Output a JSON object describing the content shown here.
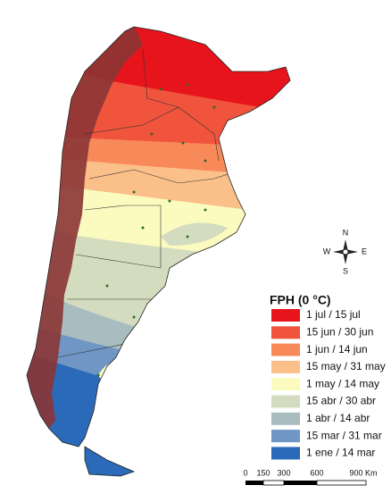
{
  "legend": {
    "title": "FPH (0 °C)",
    "items": [
      {
        "label": "1 jul / 15 jul",
        "color": "#e8141c"
      },
      {
        "label": "15 jun / 30 jun",
        "color": "#f0543c"
      },
      {
        "label": "1 jun / 14 jun",
        "color": "#f88a5a"
      },
      {
        "label": "15 may / 31 may",
        "color": "#fbbf8a"
      },
      {
        "label": "1 may / 14 may",
        "color": "#fbfbbf"
      },
      {
        "label": "15 abr / 30 abr",
        "color": "#d4dcc0"
      },
      {
        "label": "1 abr / 14 abr",
        "color": "#a9bcc0"
      },
      {
        "label": "15 mar / 31 mar",
        "color": "#6f96c4"
      },
      {
        "label": "1 ene / 14 mar",
        "color": "#2a6ab8"
      }
    ]
  },
  "compass": {
    "north": "N",
    "south": "S",
    "east": "E",
    "west": "W"
  },
  "scale_bar": {
    "labels": [
      "0",
      "150",
      "300",
      "600",
      "900 Km"
    ]
  }
}
